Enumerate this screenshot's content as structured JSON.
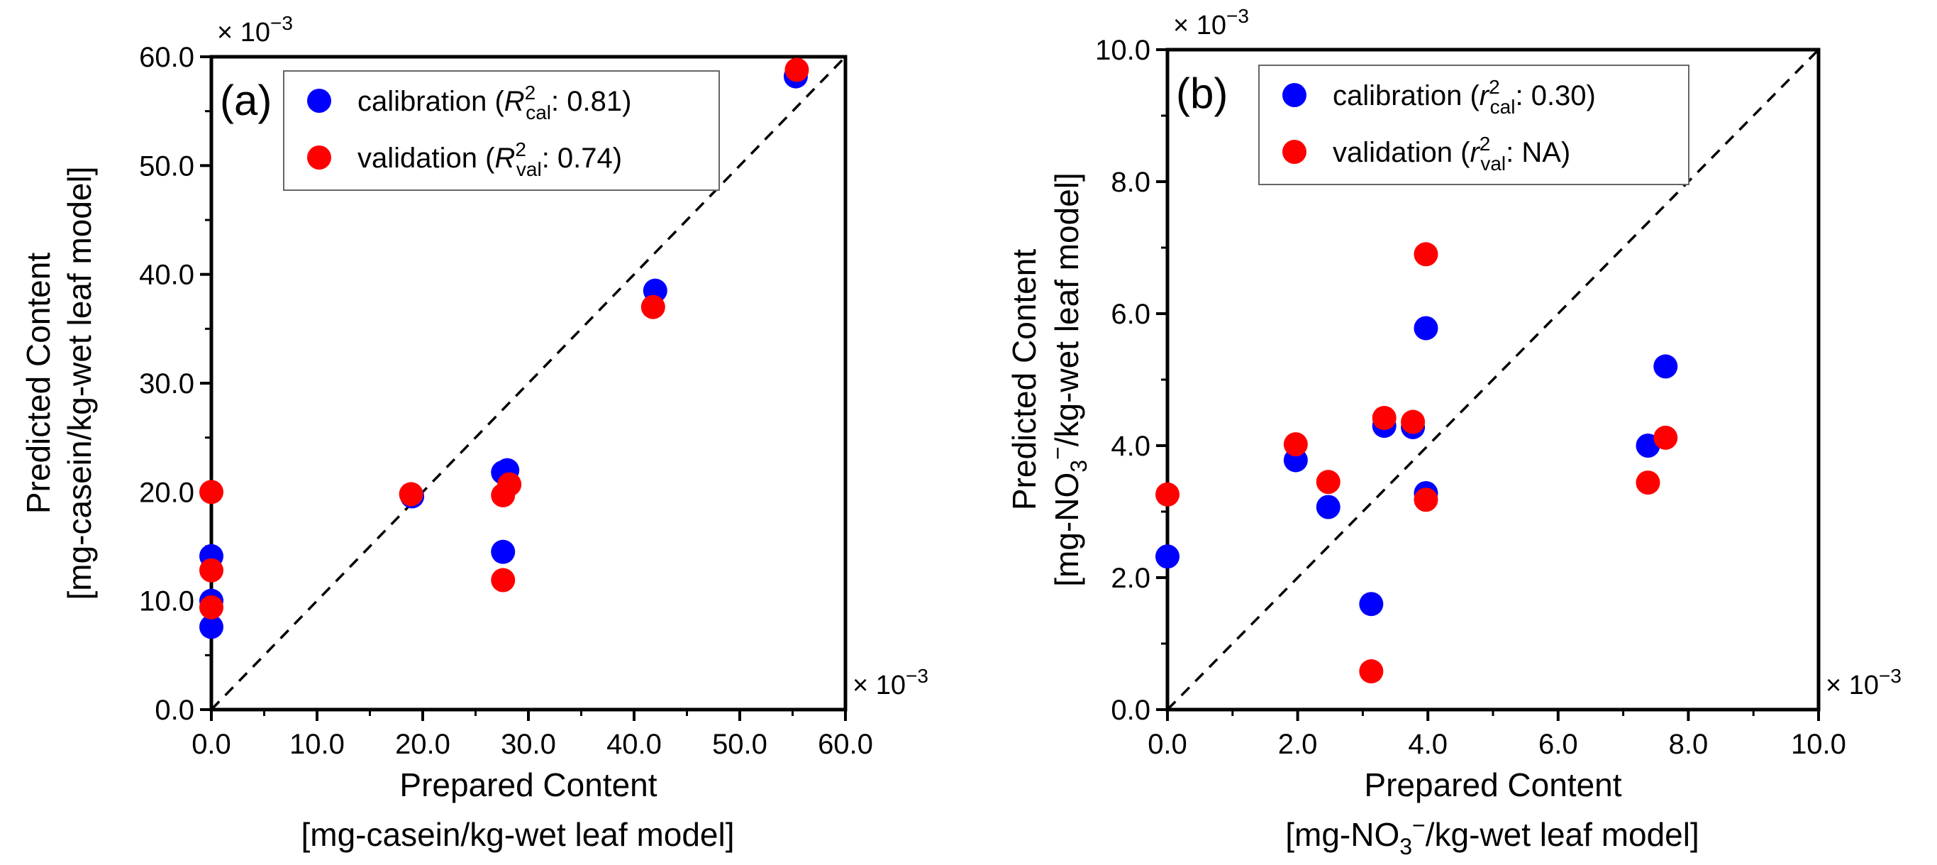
{
  "colors": {
    "calibration": "#0000ff",
    "validation": "#ff0000",
    "axis": "#000000",
    "legend_border": "#666666"
  },
  "chart_data": [
    {
      "type": "scatter",
      "panel_label": "(a)",
      "xlabel": "Prepared Content",
      "xunit": "[mg-casein/kg-wet leaf model]",
      "ylabel": "Predicted Content",
      "yunit": "[mg-casein/kg-wet leaf model]",
      "xlim": [
        0,
        60
      ],
      "ylim": [
        0,
        60
      ],
      "xticks": [
        "0.0",
        "10.0",
        "20.0",
        "30.0",
        "40.0",
        "50.0",
        "60.0"
      ],
      "yticks": [
        "0.0",
        "10.0",
        "20.0",
        "30.0",
        "40.0",
        "50.0",
        "60.0"
      ],
      "x_multiplier": {
        "base": "× 10",
        "exp": "−3"
      },
      "y_multiplier": {
        "base": "× 10",
        "exp": "−3"
      },
      "reference_line": "y = x (dashed)",
      "legend_position": "top-center",
      "series": [
        {
          "name": "calibration",
          "legend": {
            "label": "calibration (",
            "sym": "R",
            "sup": "2",
            "sub": "cal",
            "val": ": 0.81)"
          },
          "points": [
            [
              0,
              14.1
            ],
            [
              0,
              10.0
            ],
            [
              0,
              7.6
            ],
            [
              19.0,
              19.6
            ],
            [
              27.6,
              21.8
            ],
            [
              28.0,
              22.0
            ],
            [
              27.6,
              14.5
            ],
            [
              42.0,
              38.5
            ],
            [
              55.3,
              58.2
            ]
          ]
        },
        {
          "name": "validation",
          "legend": {
            "label": "validation (",
            "sym": "R",
            "sup": "2",
            "sub": "val",
            "val": ": 0.74)"
          },
          "points": [
            [
              0,
              20.0
            ],
            [
              0,
              12.8
            ],
            [
              0,
              9.4
            ],
            [
              18.9,
              19.8
            ],
            [
              27.6,
              19.7
            ],
            [
              28.2,
              20.7
            ],
            [
              27.6,
              11.9
            ],
            [
              41.8,
              37.0
            ],
            [
              55.4,
              58.8
            ]
          ]
        }
      ]
    },
    {
      "type": "scatter",
      "panel_label": "(b)",
      "xlabel": "Prepared Content",
      "xunit": {
        "pre": "[mg-NO",
        "sub": "3",
        "sup": "−",
        "post": "/kg-wet leaf model]"
      },
      "ylabel": "Predicted Content",
      "yunit": {
        "pre": "[mg-NO",
        "sub": "3",
        "sup": "−",
        "post": "/kg-wet leaf model]"
      },
      "xlim": [
        0,
        10
      ],
      "ylim": [
        0,
        10
      ],
      "xticks": [
        "0.0",
        "2.0",
        "4.0",
        "6.0",
        "8.0",
        "10.0"
      ],
      "yticks": [
        "0.0",
        "2.0",
        "4.0",
        "6.0",
        "8.0",
        "10.0"
      ],
      "x_multiplier": {
        "base": "× 10",
        "exp": "−3"
      },
      "y_multiplier": {
        "base": "× 10",
        "exp": "−3"
      },
      "reference_line": "y = x (dashed)",
      "legend_position": "top-center",
      "series": [
        {
          "name": "calibration",
          "legend": {
            "label": "calibration (",
            "sym": "r",
            "sup": "2",
            "sub": "cal",
            "val": ": 0.30)"
          },
          "points": [
            [
              0,
              2.32
            ],
            [
              1.97,
              3.78
            ],
            [
              2.47,
              3.07
            ],
            [
              3.13,
              1.6
            ],
            [
              3.33,
              4.3
            ],
            [
              3.77,
              4.28
            ],
            [
              3.97,
              5.78
            ],
            [
              3.97,
              3.28
            ],
            [
              7.38,
              4.0
            ],
            [
              7.65,
              5.2
            ]
          ]
        },
        {
          "name": "validation",
          "legend": {
            "label": "validation (",
            "sym": "r",
            "sup": "2",
            "sub": "val",
            "val": ": NA)"
          },
          "points": [
            [
              0,
              3.26
            ],
            [
              1.97,
              4.02
            ],
            [
              2.47,
              3.45
            ],
            [
              3.13,
              0.58
            ],
            [
              3.33,
              4.42
            ],
            [
              3.77,
              4.36
            ],
            [
              3.97,
              6.9
            ],
            [
              3.97,
              3.18
            ],
            [
              7.38,
              3.44
            ],
            [
              7.65,
              4.12
            ]
          ]
        }
      ]
    }
  ]
}
